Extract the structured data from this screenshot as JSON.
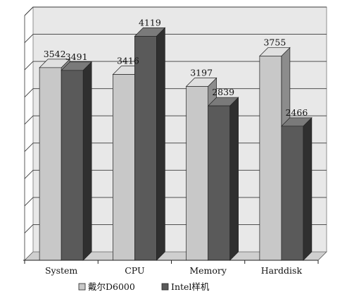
{
  "chart_data": {
    "type": "bar",
    "title": "",
    "xlabel": "",
    "ylabel": "",
    "categories": [
      "System",
      "CPU",
      "Memory",
      "Harddisk"
    ],
    "series": [
      {
        "name": "戴尔D6000",
        "values": [
          3542,
          3416,
          3197,
          3755
        ],
        "color": "#c8c8c8"
      },
      {
        "name": "Intel样机",
        "values": [
          3491,
          4119,
          2839,
          2466
        ],
        "color": "#5a5a5a"
      }
    ],
    "ylim": [
      0,
      4500
    ],
    "grid": true,
    "legend_position": "bottom",
    "show_data_labels": true,
    "style": "3d-clustered-bar",
    "plot_background": "#e8e8e8"
  }
}
